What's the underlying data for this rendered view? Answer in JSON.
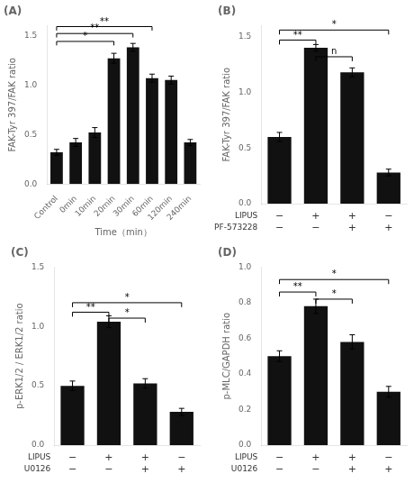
{
  "chart_data": [
    {
      "type": "bar",
      "title": "(A)",
      "categories": [
        "Control",
        "0min",
        "10min",
        "20min",
        "30min",
        "60min",
        "120min",
        "240min"
      ],
      "values": [
        0.32,
        0.42,
        0.52,
        1.27,
        1.38,
        1.07,
        1.05,
        0.42
      ],
      "errors": [
        0.03,
        0.04,
        0.05,
        0.05,
        0.04,
        0.04,
        0.04,
        0.03
      ],
      "color": "#111111",
      "ylabel": "FAK-Tyr 397/FAK ratio",
      "xlabel": "Time（min）",
      "ylim": [
        0,
        1.6
      ],
      "yticks": [
        {
          "value": 0,
          "label": "0.0"
        },
        {
          "value": 0.5,
          "label": "0.5"
        },
        {
          "value": 1,
          "label": "1.0"
        },
        {
          "value": 1.5,
          "label": "1.5"
        }
      ],
      "grid": false,
      "annotations": [
        {
          "x1": 0,
          "x2": 3,
          "y": 1.44,
          "text": "*"
        },
        {
          "x1": 0,
          "x2": 4,
          "y": 1.52,
          "text": "**"
        },
        {
          "x1": 0,
          "x2": 5,
          "y": 1.59,
          "text": "**"
        }
      ]
    },
    {
      "type": "bar",
      "title": "(B)",
      "categories": [
        [
          "−",
          "−"
        ],
        [
          "+",
          "−"
        ],
        [
          "+",
          "+"
        ],
        [
          "−",
          "+"
        ]
      ],
      "category_rows": [
        "LIPUS",
        "PF-573228"
      ],
      "values": [
        0.6,
        1.4,
        1.18,
        0.28
      ],
      "errors": [
        0.04,
        0.03,
        0.04,
        0.03
      ],
      "color": "#111111",
      "ylabel": "FAK-Tyr 397/FAK ratio",
      "ylim": [
        0,
        1.6
      ],
      "yticks": [
        {
          "value": 0,
          "label": "0.0"
        },
        {
          "value": 0.5,
          "label": "0.5"
        },
        {
          "value": 1,
          "label": "1.0"
        },
        {
          "value": 1.5,
          "label": "1.5"
        }
      ],
      "grid": false,
      "annotations": [
        {
          "x1": 0,
          "x2": 1,
          "y": 1.47,
          "text": "**"
        },
        {
          "x1": 1,
          "x2": 2,
          "y": 1.32,
          "text": "n"
        },
        {
          "x1": 0,
          "x2": 3,
          "y": 1.56,
          "text": "*"
        }
      ]
    },
    {
      "type": "bar",
      "title": "(C)",
      "categories": [
        [
          "−",
          "−"
        ],
        [
          "+",
          "−"
        ],
        [
          "+",
          "+"
        ],
        [
          "−",
          "+"
        ]
      ],
      "category_rows": [
        "LIPUS",
        "U0126"
      ],
      "values": [
        0.5,
        1.04,
        0.52,
        0.28
      ],
      "errors": [
        0.04,
        0.05,
        0.04,
        0.03
      ],
      "color": "#111111",
      "ylabel": "p-ERK1/2 / ERK1/2 ratio",
      "ylim": [
        0,
        1.5
      ],
      "yticks": [
        {
          "value": 0,
          "label": "0.0"
        },
        {
          "value": 0.5,
          "label": "0.5"
        },
        {
          "value": 1,
          "label": "1.0"
        },
        {
          "value": 1.5,
          "label": "1.5"
        }
      ],
      "grid": false,
      "annotations": [
        {
          "x1": 0,
          "x2": 1,
          "y": 1.12,
          "text": "**"
        },
        {
          "x1": 1,
          "x2": 2,
          "y": 1.07,
          "text": "*"
        },
        {
          "x1": 0,
          "x2": 3,
          "y": 1.2,
          "text": "*"
        }
      ]
    },
    {
      "type": "bar",
      "title": "(D)",
      "categories": [
        [
          "−",
          "−"
        ],
        [
          "+",
          "−"
        ],
        [
          "+",
          "+"
        ],
        [
          "−",
          "+"
        ]
      ],
      "category_rows": [
        "LIPUS",
        "U0126"
      ],
      "values": [
        0.5,
        0.78,
        0.58,
        0.3
      ],
      "errors": [
        0.03,
        0.04,
        0.04,
        0.03
      ],
      "color": "#111111",
      "ylabel": "p-MLC/GAPDH ratio",
      "ylim": [
        0,
        1.0
      ],
      "yticks": [
        {
          "value": 0,
          "label": "0.0"
        },
        {
          "value": 0.2,
          "label": "0.2"
        },
        {
          "value": 0.4,
          "label": "0.4"
        },
        {
          "value": 0.6,
          "label": "0.6"
        },
        {
          "value": 0.8,
          "label": "0.8"
        },
        {
          "value": 1,
          "label": "1.0"
        }
      ],
      "grid": false,
      "annotations": [
        {
          "x1": 0,
          "x2": 1,
          "y": 0.86,
          "text": "**"
        },
        {
          "x1": 1,
          "x2": 2,
          "y": 0.82,
          "text": "*"
        },
        {
          "x1": 0,
          "x2": 3,
          "y": 0.93,
          "text": "*"
        }
      ]
    }
  ]
}
